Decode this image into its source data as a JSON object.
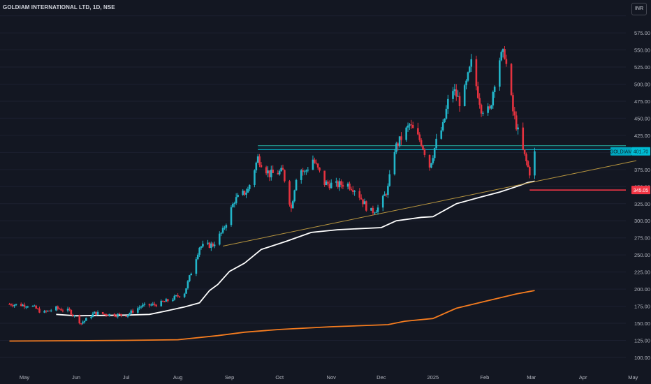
{
  "header": {
    "title": "GOLDIAM INTERNATIONAL LTD, 1D, NSE",
    "currency": "INR"
  },
  "chart_data": {
    "type": "candlestick",
    "title": "GOLDIAM INTERNATIONAL LTD, 1D, NSE",
    "ylim": [
      87.5,
      605
    ],
    "y_ticks": [
      100,
      125,
      150,
      175,
      200,
      225,
      250,
      275,
      300,
      325,
      350,
      375,
      400,
      425,
      450,
      475,
      500,
      525,
      550,
      575,
      600
    ],
    "y_tick_labels": [
      "100.00",
      "125.00",
      "150.00",
      "175.00",
      "200.00",
      "225.00",
      "250.00",
      "275.00",
      "300.00",
      "325.00",
      "350.00",
      "375.00",
      "400.00",
      "425.00",
      "450.00",
      "475.00",
      "500.00",
      "525.00",
      "550.00",
      "575.00",
      "600.00"
    ],
    "x_ticks": [
      "May",
      "Jun",
      "Jul",
      "Aug",
      "Sep",
      "Oct",
      "Nov",
      "Dec",
      "2025",
      "Feb",
      "Mar",
      "Apr",
      "May"
    ],
    "x_tick_dates": [
      "2024-05-01",
      "2024-06-01",
      "2024-07-01",
      "2024-08-01",
      "2024-09-01",
      "2024-10-01",
      "2024-11-01",
      "2024-12-01",
      "2025-01-01",
      "2025-02-01",
      "2025-03-01",
      "2025-04-01",
      "2025-05-01"
    ],
    "price_anchors": [
      [
        "2024-04-22",
        178
      ],
      [
        "2024-05-05",
        176
      ],
      [
        "2024-05-12",
        165
      ],
      [
        "2024-05-20",
        172
      ],
      [
        "2024-05-28",
        168
      ],
      [
        "2024-06-04",
        150
      ],
      [
        "2024-06-12",
        165
      ],
      [
        "2024-06-20",
        163
      ],
      [
        "2024-07-01",
        162
      ],
      [
        "2024-07-10",
        175
      ],
      [
        "2024-07-20",
        178
      ],
      [
        "2024-07-28",
        185
      ],
      [
        "2024-08-05",
        195
      ],
      [
        "2024-08-14",
        262
      ],
      [
        "2024-08-22",
        265
      ],
      [
        "2024-08-28",
        285
      ],
      [
        "2024-09-04",
        330
      ],
      [
        "2024-09-12",
        345
      ],
      [
        "2024-09-18",
        392
      ],
      [
        "2024-09-25",
        368
      ],
      [
        "2024-10-03",
        372
      ],
      [
        "2024-10-08",
        318
      ],
      [
        "2024-10-12",
        380
      ],
      [
        "2024-10-16",
        370
      ],
      [
        "2024-10-21",
        390
      ],
      [
        "2024-10-28",
        355
      ],
      [
        "2024-11-04",
        352
      ],
      [
        "2024-11-10",
        355
      ],
      [
        "2024-11-16",
        345
      ],
      [
        "2024-11-24",
        312
      ],
      [
        "2024-11-30",
        320
      ],
      [
        "2024-12-05",
        348
      ],
      [
        "2024-12-09",
        405
      ],
      [
        "2024-12-14",
        425
      ],
      [
        "2024-12-18",
        440
      ],
      [
        "2024-12-25",
        415
      ],
      [
        "2024-12-30",
        380
      ],
      [
        "2025-01-03",
        415
      ],
      [
        "2025-01-07",
        438
      ],
      [
        "2025-01-12",
        497
      ],
      [
        "2025-01-18",
        470
      ],
      [
        "2025-01-24",
        530
      ],
      [
        "2025-01-30",
        465
      ],
      [
        "2025-02-04",
        460
      ],
      [
        "2025-02-09",
        535
      ],
      [
        "2025-02-13",
        545
      ],
      [
        "2025-02-18",
        460
      ],
      [
        "2025-02-23",
        410
      ],
      [
        "2025-02-27",
        378
      ],
      [
        "2025-03-01",
        364
      ],
      [
        "2025-03-03",
        401.7
      ]
    ],
    "series": [
      {
        "name": "",
        "color": "#ffffff",
        "points": [
          [
            "2024-05-20",
            163
          ],
          [
            "2024-06-01",
            161
          ],
          [
            "2024-07-01",
            162
          ],
          [
            "2024-07-15",
            163
          ],
          [
            "2024-07-25",
            168
          ],
          [
            "2024-08-05",
            174
          ],
          [
            "2024-08-14",
            180
          ],
          [
            "2024-08-20",
            198
          ],
          [
            "2024-08-25",
            207
          ],
          [
            "2024-09-01",
            226
          ],
          [
            "2024-09-10",
            238
          ],
          [
            "2024-09-20",
            258
          ],
          [
            "2024-10-05",
            270
          ],
          [
            "2024-10-20",
            283
          ],
          [
            "2024-11-05",
            287
          ],
          [
            "2024-12-01",
            290
          ],
          [
            "2024-12-10",
            300
          ],
          [
            "2024-12-25",
            305
          ],
          [
            "2025-01-01",
            306
          ],
          [
            "2025-01-15",
            325
          ],
          [
            "2025-01-30",
            335
          ],
          [
            "2025-02-10",
            342
          ],
          [
            "2025-02-20",
            350
          ],
          [
            "2025-02-27",
            356
          ],
          [
            "2025-03-03",
            358
          ]
        ]
      },
      {
        "name": "",
        "color": "#f57c1f",
        "points": [
          [
            "2024-04-22",
            124
          ],
          [
            "2024-06-01",
            124.5
          ],
          [
            "2024-07-01",
            125
          ],
          [
            "2024-08-01",
            126
          ],
          [
            "2024-08-25",
            132
          ],
          [
            "2024-09-10",
            137
          ],
          [
            "2024-10-01",
            141
          ],
          [
            "2024-11-01",
            145
          ],
          [
            "2024-12-05",
            148
          ],
          [
            "2024-12-15",
            153
          ],
          [
            "2025-01-01",
            157
          ],
          [
            "2025-01-15",
            172
          ],
          [
            "2025-02-01",
            182
          ],
          [
            "2025-02-20",
            193
          ],
          [
            "2025-03-03",
            198
          ]
        ]
      }
    ],
    "trendline": {
      "from": [
        "2024-08-28",
        263
      ],
      "to": [
        "2025-05-03",
        388
      ],
      "color": "#b8963f"
    },
    "support_zone": {
      "from": "2024-09-18",
      "upper": 410,
      "lower": 404
    },
    "red_level": {
      "from": "2025-02-28",
      "value": 345.05,
      "label": "345.05",
      "color": "#f23645"
    },
    "last_price": {
      "symbol": "GOLDIAM",
      "value": 401.7,
      "label": "401.70"
    }
  }
}
